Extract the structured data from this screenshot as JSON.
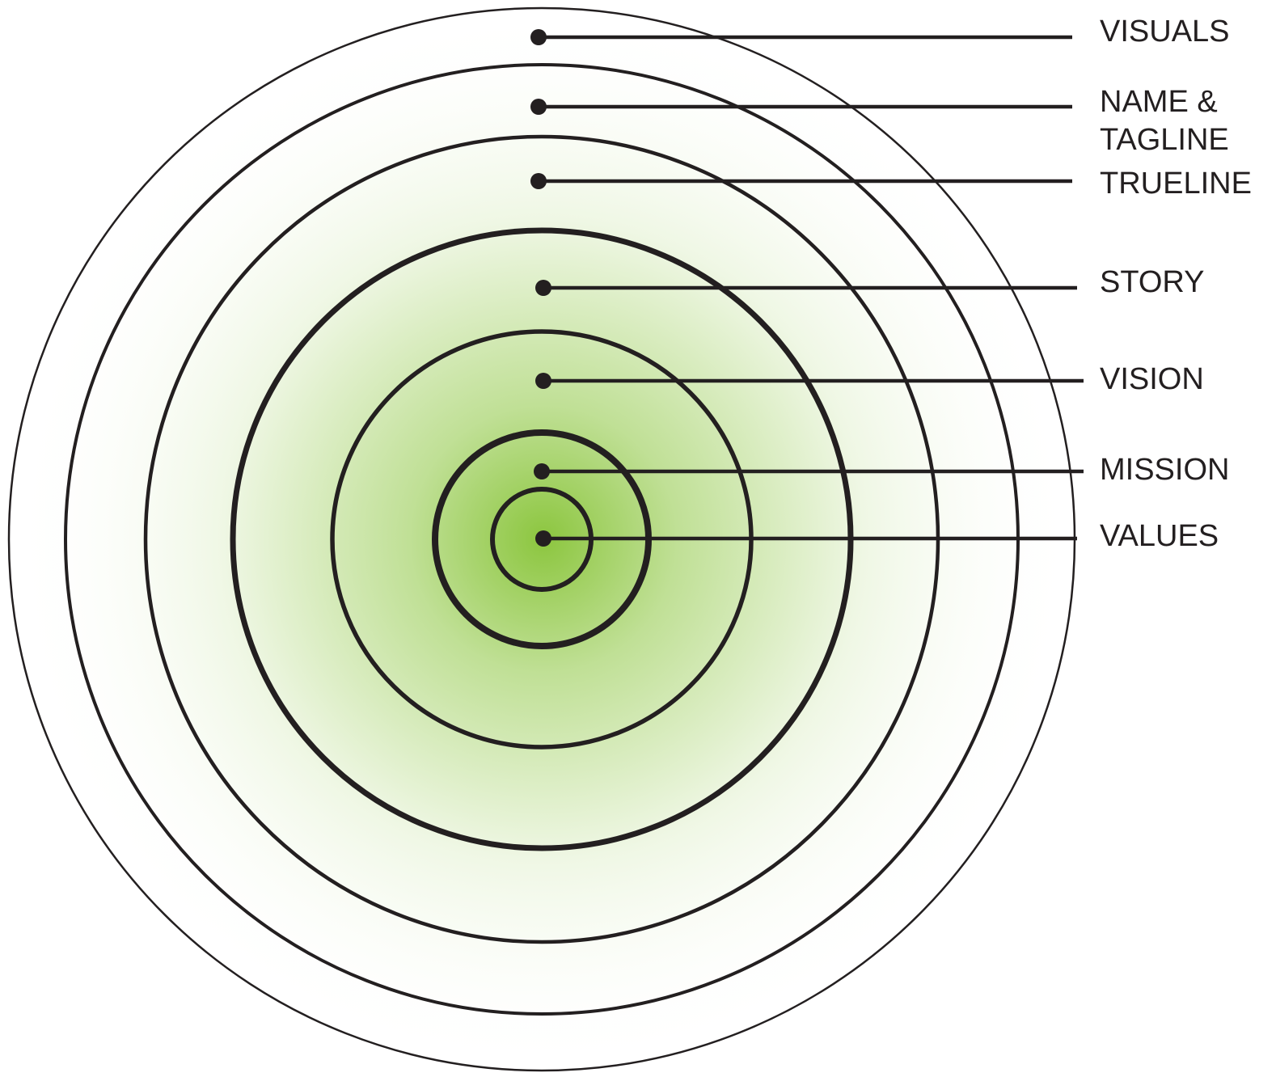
{
  "diagram": {
    "colors": {
      "center_green": "#8cc63f",
      "outer_fade": "#ffffff",
      "line": "#231f20"
    },
    "layers": [
      {
        "id": "visuals",
        "label_lines": [
          "VISUALS"
        ]
      },
      {
        "id": "name-tagline",
        "label_lines": [
          "NAME &",
          "TAGLINE"
        ]
      },
      {
        "id": "trueline",
        "label_lines": [
          "TRUELINE"
        ]
      },
      {
        "id": "story",
        "label_lines": [
          "STORY"
        ]
      },
      {
        "id": "vision",
        "label_lines": [
          "VISION"
        ]
      },
      {
        "id": "mission",
        "label_lines": [
          "MISSION"
        ]
      },
      {
        "id": "values",
        "label_lines": [
          "VALUES"
        ]
      }
    ]
  }
}
